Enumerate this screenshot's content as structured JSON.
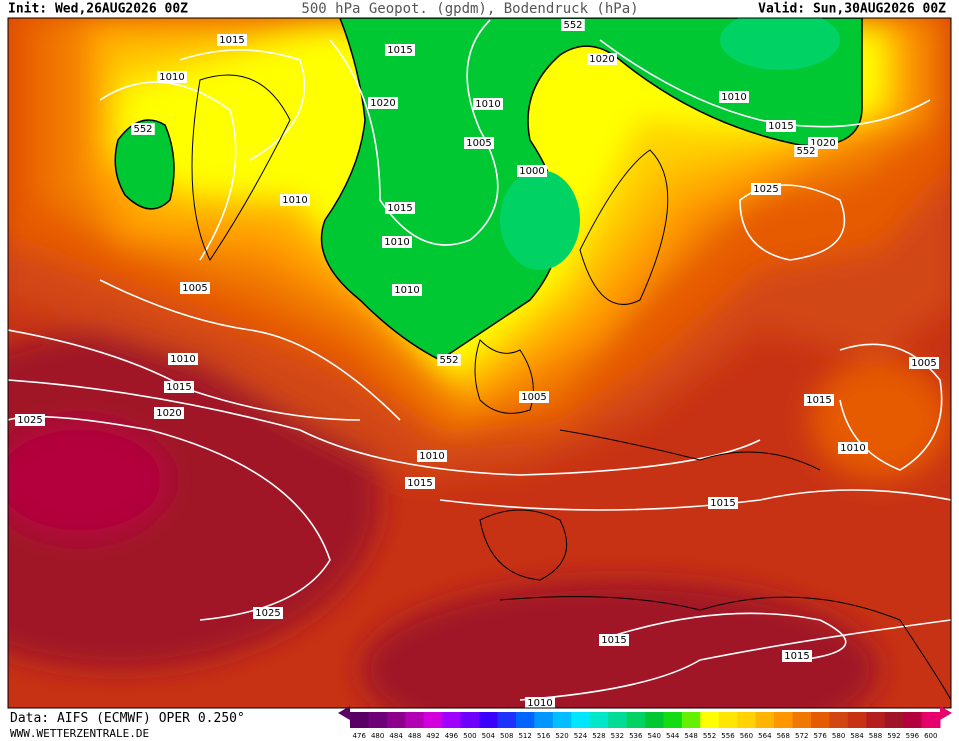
{
  "header": {
    "init": "Init: Wed,26AUG2026 00Z",
    "title": "500 hPa Geopot. (gpdm), Bodendruck (hPa)",
    "valid": "Valid: Sun,30AUG2026 00Z"
  },
  "footer": {
    "source": "Data: AIFS (ECMWF) OPER 0.250°",
    "site": "WWW.WETTERZENTRALE.DE"
  },
  "isobar_labels": [
    "1015",
    "1015",
    "1010",
    "552",
    "1020",
    "1010",
    "1005",
    "1000",
    "1015",
    "1010",
    "1010",
    "1010",
    "1005",
    "1010",
    "1015",
    "1020",
    "1025",
    "552",
    "1005",
    "1010",
    "1015",
    "1015",
    "1025",
    "1015",
    "1015",
    "1010",
    "552",
    "1020",
    "1010",
    "1015",
    "1020",
    "552",
    "1025",
    "1005",
    "1015",
    "1010"
  ],
  "colorbar": {
    "values": [
      476,
      480,
      484,
      488,
      492,
      496,
      500,
      504,
      508,
      512,
      516,
      520,
      524,
      528,
      532,
      536,
      540,
      544,
      548,
      552,
      556,
      560,
      564,
      568,
      572,
      576,
      580,
      584,
      588,
      592,
      596,
      600
    ],
    "colors": [
      "#5a0064",
      "#6e0078",
      "#8c008c",
      "#b400b4",
      "#d200dc",
      "#a000ff",
      "#6e00ff",
      "#3c00ff",
      "#1e32ff",
      "#0064ff",
      "#0096ff",
      "#00beff",
      "#00e6ff",
      "#00e6c8",
      "#00dc96",
      "#00d264",
      "#00c832",
      "#14dc14",
      "#64f000",
      "#ffff00",
      "#ffe600",
      "#ffd200",
      "#ffb400",
      "#ff9600",
      "#f07800",
      "#e65a00",
      "#d24614",
      "#c83214",
      "#b41e1e",
      "#a01428",
      "#b4003c",
      "#e6006e"
    ]
  }
}
